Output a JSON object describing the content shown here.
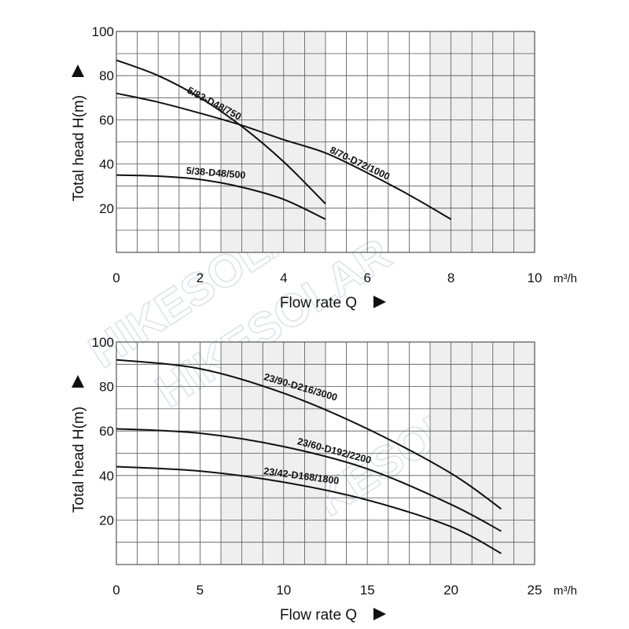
{
  "watermark": "HIKESOLAR",
  "chart_data": [
    {
      "type": "line",
      "xlabel": "Flow rate Q",
      "ylabel": "Total head H(m)",
      "x_unit": "m³/h",
      "xlim": [
        0,
        10
      ],
      "ylim": [
        0,
        100
      ],
      "x_ticks": [
        0,
        2,
        4,
        6,
        8,
        10
      ],
      "y_ticks": [
        20,
        40,
        60,
        80,
        100
      ],
      "grid": true,
      "shaded_x_ranges": [
        [
          2.5,
          5
        ],
        [
          7.5,
          10
        ]
      ],
      "series": [
        {
          "name": "5/83-D48/750",
          "points": [
            [
              0,
              87
            ],
            [
              1,
              80
            ],
            [
              2,
              70
            ],
            [
              3,
              57
            ],
            [
              4,
              41
            ],
            [
              5,
              22
            ]
          ]
        },
        {
          "name": "8/70-D72/1000",
          "points": [
            [
              0,
              72
            ],
            [
              1,
              68
            ],
            [
              2,
              63
            ],
            [
              3,
              57.5
            ],
            [
              4,
              51
            ],
            [
              5,
              45
            ],
            [
              6,
              36
            ],
            [
              7,
              26
            ],
            [
              8,
              15
            ]
          ]
        },
        {
          "name": "5/38-D48/500",
          "points": [
            [
              0,
              35
            ],
            [
              1,
              34.5
            ],
            [
              2,
              33
            ],
            [
              3,
              29.5
            ],
            [
              4,
              24
            ],
            [
              5,
              15
            ]
          ]
        }
      ]
    },
    {
      "type": "line",
      "xlabel": "Flow rate Q",
      "ylabel": "Total head H(m)",
      "x_unit": "m³/h",
      "xlim": [
        0,
        25
      ],
      "ylim": [
        0,
        100
      ],
      "x_ticks": [
        0,
        5,
        10,
        15,
        20,
        25
      ],
      "y_ticks": [
        20,
        40,
        60,
        80,
        100
      ],
      "grid": true,
      "shaded_x_ranges": [
        [
          6.25,
          12.5
        ],
        [
          18.75,
          25
        ]
      ],
      "series": [
        {
          "name": "23/90-D216/3000",
          "points": [
            [
              0,
              92
            ],
            [
              5,
              88
            ],
            [
              10,
              77
            ],
            [
              15,
              61
            ],
            [
              20,
              41
            ],
            [
              23,
              25
            ]
          ]
        },
        {
          "name": "23/60-D192/2200",
          "points": [
            [
              0,
              61
            ],
            [
              5,
              59
            ],
            [
              10,
              53
            ],
            [
              15,
              43
            ],
            [
              20,
              27
            ],
            [
              23,
              15
            ]
          ]
        },
        {
          "name": "23/42-D168/1800",
          "points": [
            [
              0,
              44
            ],
            [
              5,
              42
            ],
            [
              10,
              37
            ],
            [
              15,
              29
            ],
            [
              20,
              17
            ],
            [
              23,
              5
            ]
          ]
        }
      ]
    }
  ]
}
